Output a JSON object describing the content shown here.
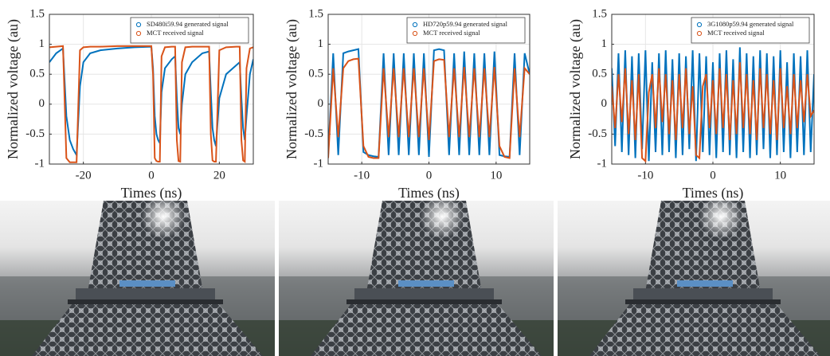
{
  "chart_data": [
    {
      "type": "line",
      "xlabel": "Times (ns)",
      "ylabel": "Normalized voltage (au)",
      "legend": "upper right",
      "xlim": [
        -30,
        30
      ],
      "ylim": [
        -1,
        1.5
      ],
      "xticks": [
        -20,
        0,
        20
      ],
      "yticks": [
        -1,
        -0.5,
        0,
        0.5,
        1,
        1.5
      ],
      "grid": true,
      "x": [
        -30,
        -28,
        -26,
        -25,
        -24,
        -23,
        -22,
        -21,
        -20,
        -18,
        -15,
        -10,
        -5,
        0,
        0.5,
        1,
        1.5,
        2,
        2.5,
        3,
        4,
        6,
        7,
        7.5,
        8,
        8.5,
        9,
        10,
        12,
        15,
        17,
        17.5,
        18,
        18.5,
        19,
        20,
        22,
        25,
        26,
        26.5,
        27,
        27.5,
        28,
        29,
        30
      ],
      "series": [
        {
          "name": "SD480i59.94 generated signal",
          "color": "#0072bd",
          "values": [
            0.7,
            0.85,
            0.93,
            -0.2,
            -0.6,
            -0.75,
            -0.85,
            0.3,
            0.7,
            0.85,
            0.9,
            0.93,
            0.95,
            0.96,
            0.6,
            -0.2,
            -0.5,
            -0.6,
            -0.65,
            0.2,
            0.6,
            0.75,
            0.8,
            0.1,
            -0.4,
            -0.5,
            0.0,
            0.5,
            0.7,
            0.85,
            0.88,
            0.2,
            -0.4,
            -0.6,
            -0.7,
            0.1,
            0.5,
            0.65,
            0.7,
            0.1,
            -0.4,
            -0.6,
            -0.2,
            0.5,
            0.75
          ]
        },
        {
          "name": "MCT received signal",
          "color": "#d95319",
          "values": [
            0.95,
            0.96,
            0.97,
            -0.9,
            -0.97,
            -0.97,
            -0.97,
            0.9,
            0.95,
            0.96,
            0.96,
            0.97,
            0.97,
            0.97,
            0.5,
            -0.9,
            -0.95,
            -0.96,
            -0.96,
            0.8,
            0.95,
            0.96,
            0.96,
            -0.6,
            -0.95,
            -0.96,
            0.7,
            0.95,
            0.96,
            0.96,
            0.96,
            -0.5,
            -0.94,
            -0.96,
            -0.96,
            0.9,
            0.95,
            0.96,
            0.96,
            -0.6,
            -0.94,
            -0.96,
            0.6,
            0.93,
            0.95
          ]
        }
      ]
    },
    {
      "type": "line",
      "xlabel": "Times (ns)",
      "ylabel": "Normalized voltage (au)",
      "legend": "upper right",
      "xlim": [
        -15,
        15
      ],
      "ylim": [
        -1,
        1.5
      ],
      "xticks": [
        -10,
        0,
        10
      ],
      "yticks": [
        -1,
        -0.5,
        0,
        0.5,
        1,
        1.5
      ],
      "grid": true,
      "x": [
        -15,
        -14.25,
        -13.5,
        -12.75,
        -12,
        -11.25,
        -10.5,
        -9.75,
        -9,
        -8.25,
        -7.5,
        -6.75,
        -6,
        -5.25,
        -4.5,
        -3.75,
        -3,
        -2.25,
        -1.5,
        -0.75,
        0,
        0.75,
        1.5,
        2.25,
        3,
        3.75,
        4.5,
        5.25,
        6,
        6.75,
        7.5,
        8.25,
        9,
        9.75,
        10.5,
        11.25,
        12,
        12.75,
        13.5,
        14.25,
        15
      ],
      "series": [
        {
          "name": "HD720p59.94 generated signal",
          "color": "#0072bd",
          "values": [
            -0.85,
            0.85,
            -0.85,
            0.85,
            0.88,
            0.9,
            0.92,
            -0.8,
            -0.85,
            -0.87,
            -0.88,
            0.85,
            -0.85,
            0.85,
            -0.85,
            0.85,
            -0.85,
            0.85,
            -0.85,
            0.85,
            -0.88,
            0.9,
            0.92,
            0.9,
            -0.85,
            0.85,
            -0.85,
            0.88,
            -0.85,
            0.85,
            -0.85,
            0.85,
            -0.85,
            0.88,
            -0.85,
            -0.87,
            -0.88,
            0.85,
            -0.85,
            0.85,
            0.5
          ]
        },
        {
          "name": "MCT received signal",
          "color": "#d95319",
          "values": [
            -0.9,
            0.6,
            -0.55,
            0.6,
            0.72,
            0.75,
            0.76,
            -0.7,
            -0.88,
            -0.9,
            -0.9,
            0.6,
            -0.55,
            0.6,
            -0.55,
            0.6,
            -0.55,
            0.6,
            -0.55,
            0.6,
            -0.6,
            0.72,
            0.75,
            0.74,
            -0.55,
            0.6,
            -0.55,
            0.62,
            -0.55,
            0.6,
            -0.55,
            0.6,
            -0.55,
            0.62,
            -0.7,
            -0.88,
            -0.9,
            0.6,
            -0.55,
            0.6,
            0.5
          ]
        }
      ]
    },
    {
      "type": "line",
      "xlabel": "Times (ns)",
      "ylabel": "Normalized voltage (au)",
      "legend": "upper right",
      "xlim": [
        -15,
        15
      ],
      "ylim": [
        -1,
        1.5
      ],
      "xticks": [
        -10,
        0,
        10
      ],
      "yticks": [
        -1,
        -0.5,
        0,
        0.5,
        1,
        1.5
      ],
      "grid": true,
      "x": [
        -15,
        -14.5,
        -14,
        -13.5,
        -13,
        -12.5,
        -12,
        -11.5,
        -11,
        -10.5,
        -10,
        -9.5,
        -9,
        -8.5,
        -8,
        -7.5,
        -7,
        -6.5,
        -6,
        -5.5,
        -5,
        -4.5,
        -4,
        -3.5,
        -3,
        -2.5,
        -2,
        -1.5,
        -1,
        -0.5,
        0,
        0.5,
        1,
        1.5,
        2,
        2.5,
        3,
        3.5,
        4,
        4.5,
        5,
        5.5,
        6,
        6.5,
        7,
        7.5,
        8,
        8.5,
        9,
        9.5,
        10,
        10.5,
        11,
        11.5,
        12,
        12.5,
        13,
        13.5,
        14,
        14.5,
        15
      ],
      "series": [
        {
          "name": "3G1080p59.94 generated signal",
          "color": "#0072bd",
          "values": [
            0.6,
            -0.7,
            0.85,
            -0.8,
            0.9,
            -0.85,
            0.8,
            -0.9,
            0.85,
            -0.75,
            0.9,
            -0.95,
            0.7,
            -0.8,
            0.85,
            -0.85,
            0.9,
            -0.8,
            0.75,
            -0.9,
            0.85,
            -0.85,
            0.8,
            -0.75,
            0.9,
            -0.95,
            0.85,
            -0.8,
            0.8,
            -0.85,
            0.7,
            -0.9,
            0.85,
            -0.8,
            0.9,
            -0.85,
            0.75,
            -0.9,
            0.95,
            -0.8,
            0.85,
            -0.9,
            0.8,
            -0.85,
            0.9,
            -0.75,
            0.85,
            -0.9,
            0.8,
            -0.85,
            0.9,
            -0.8,
            0.7,
            -0.9,
            0.85,
            -0.8,
            0.8,
            -0.85,
            0.9,
            -0.8,
            0.5
          ]
        },
        {
          "name": "MCT received signal",
          "color": "#d95319",
          "values": [
            0.3,
            -0.4,
            0.5,
            -0.3,
            0.6,
            -0.5,
            0.4,
            -0.6,
            0.5,
            -0.9,
            -0.95,
            0.2,
            0.5,
            -0.4,
            0.6,
            -0.3,
            0.5,
            -0.5,
            0.4,
            -0.6,
            0.5,
            -0.4,
            0.6,
            -0.5,
            0.3,
            -0.85,
            -0.9,
            0.3,
            0.5,
            -0.4,
            0.4,
            -0.5,
            0.6,
            -0.4,
            0.5,
            -0.6,
            0.4,
            -0.5,
            0.7,
            -0.4,
            0.5,
            -0.5,
            0.4,
            -0.6,
            0.6,
            -0.4,
            0.5,
            -0.5,
            0.4,
            -0.6,
            0.6,
            -0.4,
            0.3,
            -0.5,
            0.5,
            -0.4,
            0.4,
            -0.3,
            0.5,
            -0.2,
            -0.1
          ]
        }
      ]
    }
  ]
}
